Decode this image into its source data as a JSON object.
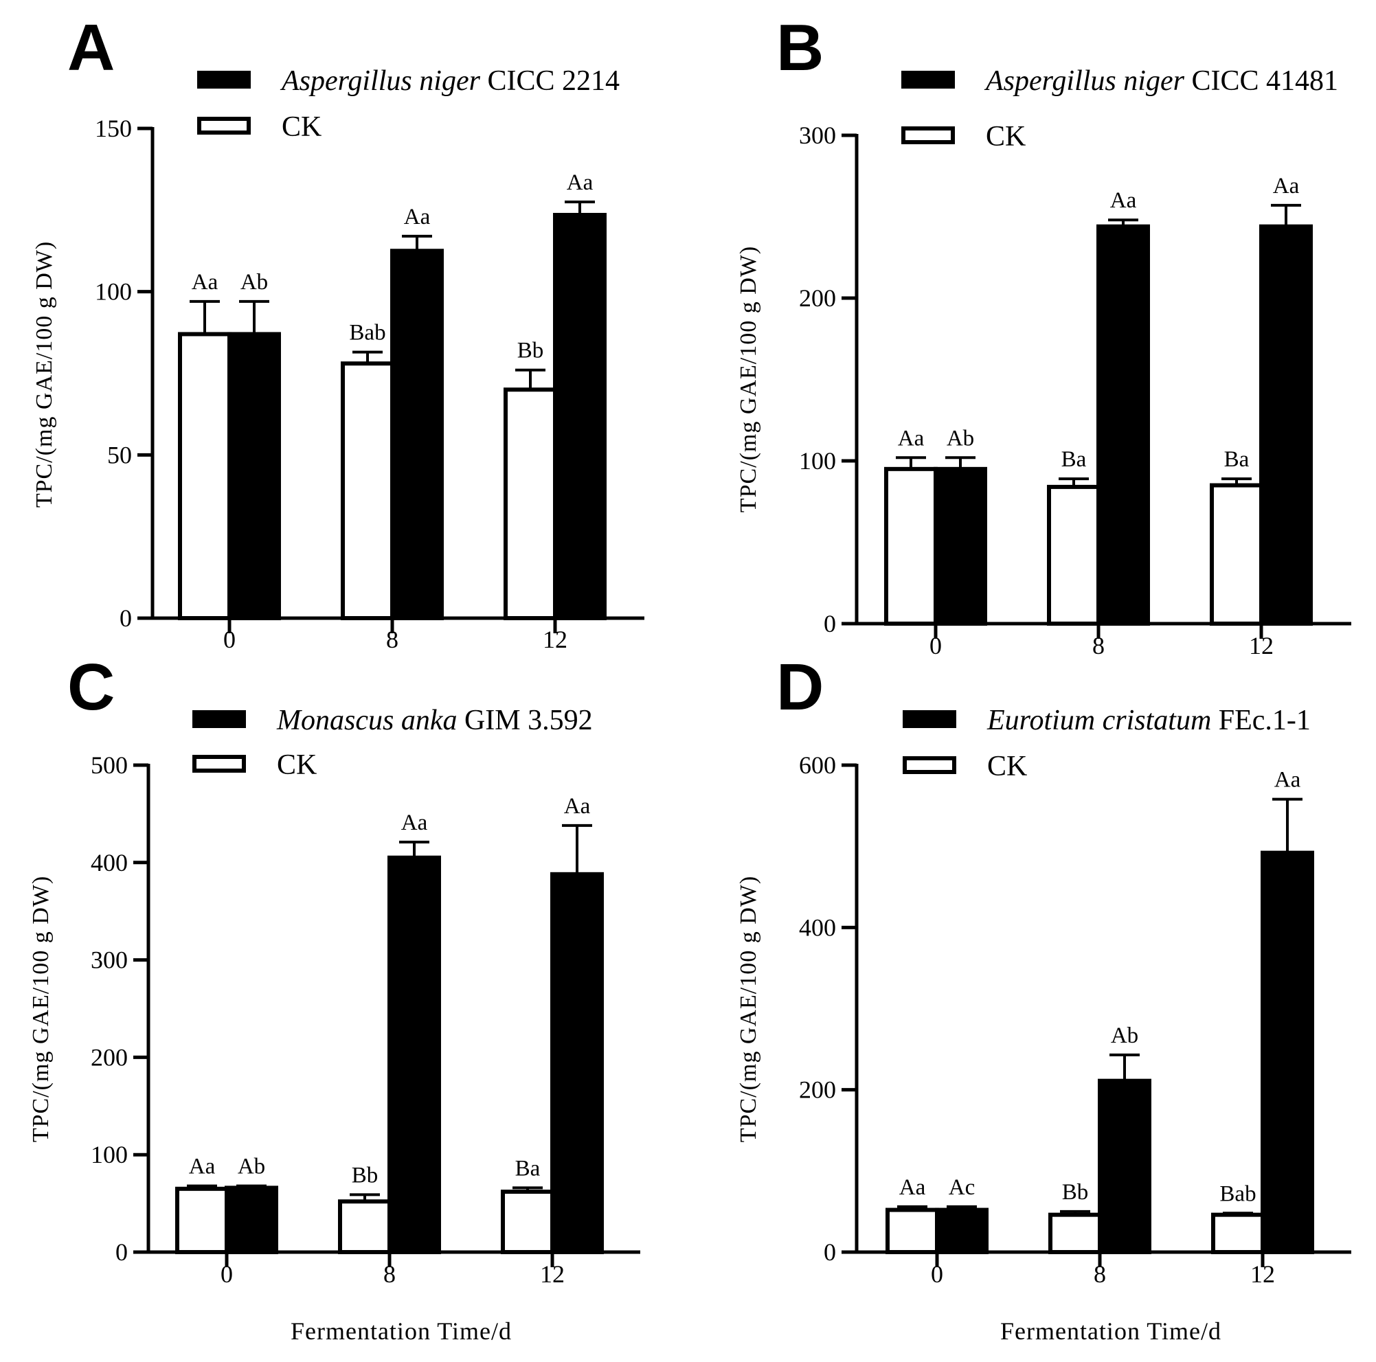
{
  "chart_data": [
    {
      "panel": "A",
      "type": "bar",
      "legend": [
        {
          "name_italic": "Aspergillus niger",
          "name_suffix": " CICC 2214",
          "fill": "#000000"
        },
        {
          "name_italic": "",
          "name_suffix": "CK",
          "fill": "#ffffff"
        }
      ],
      "categories": [
        "0",
        "8",
        "12"
      ],
      "series": [
        {
          "name": "CK",
          "values": [
            87,
            78,
            70
          ],
          "errors": [
            10,
            3.5,
            6
          ],
          "labels": [
            "Aa",
            "Bab",
            "Bb"
          ]
        },
        {
          "name": "Aspergillus niger CICC 2214",
          "values": [
            87,
            112.5,
            123.5
          ],
          "errors": [
            10,
            4.5,
            4
          ],
          "labels": [
            "Ab",
            "Aa",
            "Aa"
          ]
        }
      ],
      "ylim": [
        0,
        150
      ],
      "yticks": [
        "0",
        "50",
        "100",
        "150"
      ],
      "ylabel": "TPC/(mg GAE/100 g DW)",
      "xlabel": ""
    },
    {
      "panel": "B",
      "type": "bar",
      "legend": [
        {
          "name_italic": "Aspergillus niger",
          "name_suffix": " CICC 41481",
          "fill": "#000000"
        },
        {
          "name_italic": "",
          "name_suffix": "CK",
          "fill": "#ffffff"
        }
      ],
      "categories": [
        "0",
        "8",
        "12"
      ],
      "series": [
        {
          "name": "CK",
          "values": [
            95,
            84,
            85
          ],
          "errors": [
            7,
            5,
            4
          ],
          "labels": [
            "Aa",
            "Ba",
            "Ba"
          ]
        },
        {
          "name": "Aspergillus niger CICC 41481",
          "values": [
            95,
            244,
            244
          ],
          "errors": [
            7,
            4,
            13
          ],
          "labels": [
            "Ab",
            "Aa",
            "Aa"
          ]
        }
      ],
      "ylim": [
        0,
        300
      ],
      "yticks": [
        "0",
        "100",
        "200",
        "300"
      ],
      "ylabel": "TPC/(mg GAE/100 g DW)",
      "xlabel": ""
    },
    {
      "panel": "C",
      "type": "bar",
      "legend": [
        {
          "name_italic": "Monascus anka",
          "name_suffix": " GIM 3.592",
          "fill": "#000000"
        },
        {
          "name_italic": "",
          "name_suffix": "CK",
          "fill": "#ffffff"
        }
      ],
      "categories": [
        "0",
        "8",
        "12"
      ],
      "series": [
        {
          "name": "CK",
          "values": [
            65,
            52,
            62
          ],
          "errors": [
            3,
            7,
            4
          ],
          "labels": [
            "Aa",
            "Bb",
            "Ba"
          ]
        },
        {
          "name": "Monascus anka GIM 3.592",
          "values": [
            66,
            405,
            388
          ],
          "errors": [
            2,
            16,
            50
          ],
          "labels": [
            "Ab",
            "Aa",
            "Aa"
          ]
        }
      ],
      "ylim": [
        0,
        500
      ],
      "yticks": [
        "0",
        "100",
        "200",
        "300",
        "400",
        "500"
      ],
      "ylabel": "TPC/(mg GAE/100 g DW)",
      "xlabel": "Fermentation Time/d"
    },
    {
      "panel": "D",
      "type": "bar",
      "legend": [
        {
          "name_italic": "Eurotium cristatum",
          "name_suffix": " FEc.1-1",
          "fill": "#000000"
        },
        {
          "name_italic": "",
          "name_suffix": "CK",
          "fill": "#ffffff"
        }
      ],
      "categories": [
        "0",
        "8",
        "12"
      ],
      "series": [
        {
          "name": "CK",
          "values": [
            52,
            46,
            46
          ],
          "errors": [
            4,
            4,
            2
          ],
          "labels": [
            "Aa",
            "Bb",
            "Bab"
          ]
        },
        {
          "name": "Eurotium cristatum FEc.1-1",
          "values": [
            52,
            211,
            492
          ],
          "errors": [
            4,
            32,
            66
          ],
          "labels": [
            "Ac",
            "Ab",
            "Aa"
          ]
        }
      ],
      "ylim": [
        0,
        600
      ],
      "yticks": [
        "0",
        "200",
        "400",
        "600"
      ],
      "ylabel": "TPC/(mg GAE/100 g DW)",
      "xlabel": "Fermentation Time/d"
    }
  ]
}
